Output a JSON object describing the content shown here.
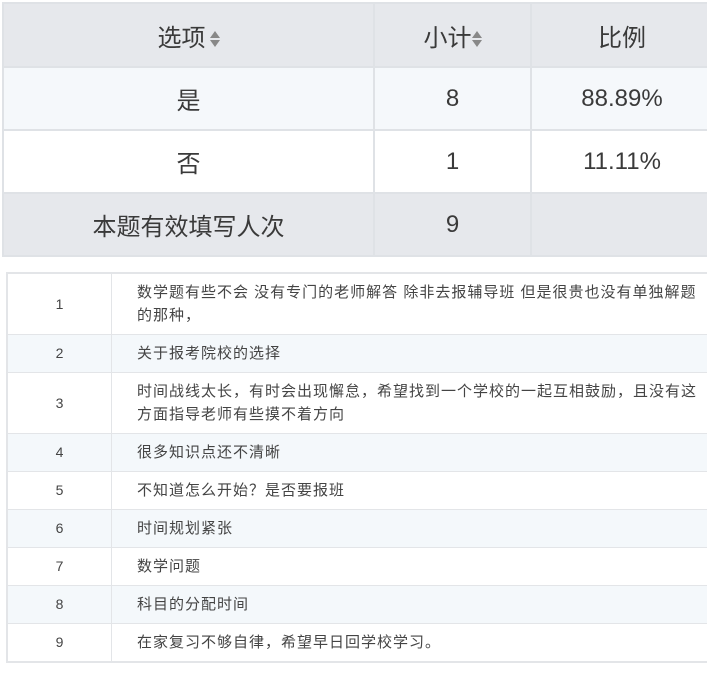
{
  "summary": {
    "headers": {
      "option": "选项",
      "subtotal": "小计",
      "ratio": "比例"
    },
    "rows": [
      {
        "option": "是",
        "subtotal": "8",
        "ratio": "88.89%"
      },
      {
        "option": "否",
        "subtotal": "1",
        "ratio": "11.11%"
      }
    ],
    "total": {
      "label": "本题有效填写人次",
      "value": "9",
      "ratio": ""
    }
  },
  "answers": [
    {
      "index": "1",
      "text": "数学题有些不会 没有专门的老师解答 除非去报辅导班 但是很贵也没有单独解题的那种，"
    },
    {
      "index": "2",
      "text": "关于报考院校的选择"
    },
    {
      "index": "3",
      "text": "时间战线太长，有时会出现懈怠，希望找到一个学校的一起互相鼓励，且没有这方面指导老师有些摸不着方向"
    },
    {
      "index": "4",
      "text": "很多知识点还不清晰"
    },
    {
      "index": "5",
      "text": "不知道怎么开始？是否要报班"
    },
    {
      "index": "6",
      "text": "时间规划紧张"
    },
    {
      "index": "7",
      "text": "数学问题"
    },
    {
      "index": "8",
      "text": "科目的分配时间"
    },
    {
      "index": "9",
      "text": "在家复习不够自律，希望早日回学校学习。"
    }
  ]
}
